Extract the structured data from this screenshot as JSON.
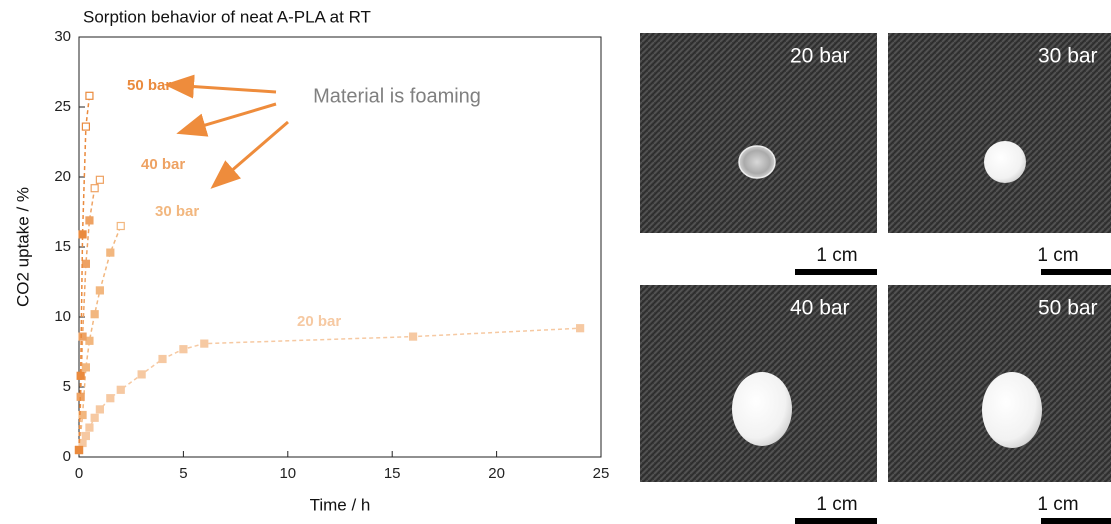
{
  "chart_data": {
    "type": "line",
    "title": "Sorption behavior of neat A-PLA at RT",
    "xlabel": "Time / h",
    "ylabel": "CO2 uptake / %",
    "xlim": [
      0,
      25
    ],
    "xticks": [
      0,
      5,
      10,
      15,
      20,
      25
    ],
    "ylim": [
      0,
      30
    ],
    "yticks": [
      0,
      5,
      10,
      15,
      20,
      25,
      30
    ],
    "annotation": "Material is foaming",
    "series": [
      {
        "name": "20 bar",
        "color": "#f6c9a2",
        "x": [
          0,
          0.17,
          0.33,
          0.5,
          0.75,
          1,
          1.5,
          2,
          3,
          4,
          5,
          6,
          16,
          24
        ],
        "values": [
          0.5,
          1.0,
          1.5,
          2.1,
          2.8,
          3.4,
          4.2,
          4.8,
          5.9,
          7.0,
          7.7,
          8.1,
          8.6,
          9.2
        ],
        "open_markers": []
      },
      {
        "name": "30 bar",
        "color": "#f2b77f",
        "x": [
          0,
          0.17,
          0.33,
          0.5,
          0.75,
          1,
          1.5,
          2
        ],
        "values": [
          0.5,
          3.0,
          6.4,
          8.3,
          10.2,
          11.9,
          14.6,
          16.5
        ],
        "open_markers": [
          7
        ]
      },
      {
        "name": "40 bar",
        "color": "#eea263",
        "x": [
          0,
          0.08,
          0.17,
          0.33,
          0.5,
          0.75,
          1
        ],
        "values": [
          0.5,
          4.3,
          8.6,
          13.8,
          16.9,
          19.2,
          19.8
        ],
        "open_markers": [
          5,
          6
        ]
      },
      {
        "name": "50 bar",
        "color": "#ea8a3d",
        "x": [
          0,
          0.08,
          0.17,
          0.33,
          0.5
        ],
        "values": [
          0.5,
          5.8,
          15.9,
          23.6,
          25.8
        ],
        "open_markers": [
          3,
          4
        ]
      }
    ]
  },
  "photos": [
    {
      "label": "20 bar",
      "scale": "1 cm"
    },
    {
      "label": "30 bar",
      "scale": "1 cm"
    },
    {
      "label": "40 bar",
      "scale": "1 cm"
    },
    {
      "label": "50 bar",
      "scale": "1 cm"
    }
  ]
}
